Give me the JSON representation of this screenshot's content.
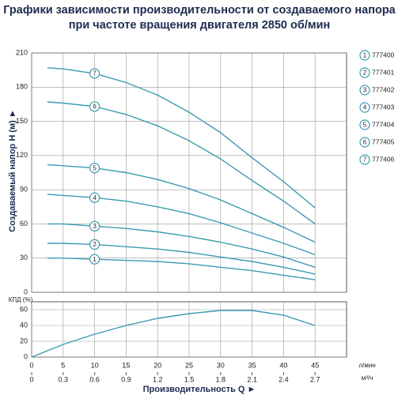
{
  "chart_data": [
    {
      "type": "line",
      "title": [
        "Графики зависимости производительности от создаваемого напора",
        "при частоте вращения двигателя 2850 об/мин"
      ],
      "y_label": "Создаваемый напор H (м) ►",
      "x": [
        2.5,
        5,
        10,
        15,
        20,
        25,
        30,
        35,
        40,
        45
      ],
      "xlim": [
        0,
        50
      ],
      "xticks": [
        0,
        5,
        10,
        15,
        20,
        25,
        30,
        35,
        40,
        45
      ],
      "ylim": [
        0,
        210
      ],
      "yticks": [
        0,
        30,
        60,
        90,
        120,
        150,
        180,
        210
      ],
      "grid": true,
      "series": [
        {
          "name": "777400",
          "label": "1",
          "color": "#3b9bb0",
          "values": [
            30,
            30,
            29,
            28,
            27,
            25,
            22,
            19,
            15,
            11
          ]
        },
        {
          "name": "777401",
          "label": "2",
          "color": "#3b9bb0",
          "values": [
            43,
            43,
            42,
            40,
            38,
            35,
            31,
            27,
            22,
            16
          ]
        },
        {
          "name": "777402",
          "label": "3",
          "color": "#3b9bb0",
          "values": [
            60,
            60,
            58,
            56,
            53,
            49,
            44,
            38,
            31,
            22
          ]
        },
        {
          "name": "777403",
          "label": "4",
          "color": "#3b9bb0",
          "values": [
            86,
            85,
            83,
            80,
            75,
            69,
            61,
            52,
            43,
            33
          ]
        },
        {
          "name": "777404",
          "label": "5",
          "color": "#3b9bb0",
          "values": [
            112,
            111,
            109,
            105,
            99,
            91,
            81,
            69,
            57,
            44
          ]
        },
        {
          "name": "777405",
          "label": "6",
          "color": "#3b9bb0",
          "values": [
            167,
            166,
            163,
            156,
            146,
            133,
            117,
            98,
            80,
            60
          ]
        },
        {
          "name": "777406",
          "label": "7",
          "color": "#3b9bb0",
          "values": [
            197,
            196,
            192,
            184,
            173,
            158,
            140,
            118,
            97,
            74
          ]
        }
      ]
    },
    {
      "type": "line",
      "y_label": "КПД (%)",
      "x_label": "Производительность Q ►",
      "x_unit": "л/мин",
      "x2_unit": "м³/ч",
      "x": [
        0,
        5,
        10,
        15,
        20,
        25,
        30,
        35,
        40,
        45
      ],
      "xlim": [
        0,
        50
      ],
      "xticks": [
        0,
        5,
        10,
        15,
        20,
        25,
        30,
        35,
        40,
        45
      ],
      "x2lim": [
        0,
        3
      ],
      "x2ticks": [
        0,
        0.3,
        0.6,
        0.9,
        1.2,
        1.5,
        1.8,
        2.1,
        2.4,
        2.7
      ],
      "ylim": [
        0,
        70
      ],
      "yticks": [
        0,
        20,
        40,
        60
      ],
      "grid": true,
      "series": [
        {
          "color": "#3b9bb0",
          "values": [
            0,
            16,
            29,
            40,
            49,
            55,
            59,
            59,
            53,
            40
          ]
        }
      ]
    }
  ]
}
